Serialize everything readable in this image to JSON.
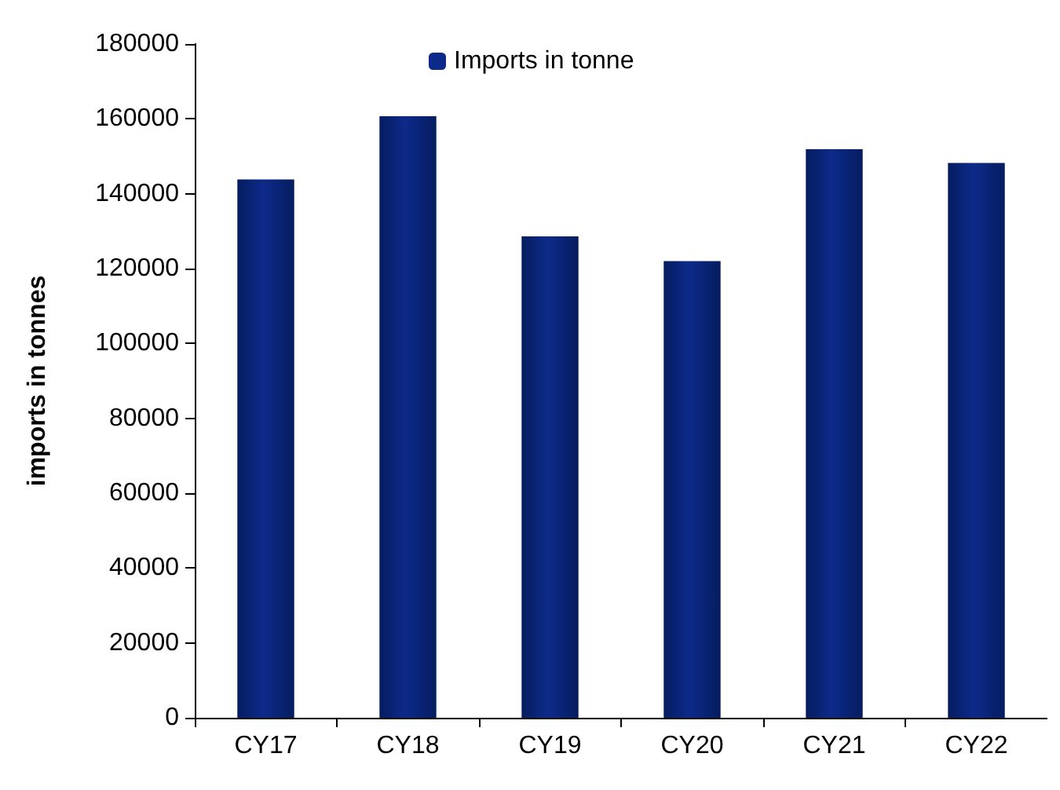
{
  "chart_data": {
    "type": "bar",
    "ylabel": "imports in tonnes",
    "categories": [
      "CY17",
      "CY18",
      "CY19",
      "CY20",
      "CY21",
      "CY22"
    ],
    "series": [
      {
        "name": "Imports in tonne",
        "color": "#0d2a8a",
        "values": [
          143800,
          160700,
          128600,
          122000,
          151900,
          148200
        ]
      }
    ],
    "ylim": [
      0,
      180000
    ],
    "yticks": [
      0,
      20000,
      40000,
      60000,
      80000,
      100000,
      120000,
      140000,
      160000,
      180000
    ],
    "grid": false,
    "legend": "top"
  }
}
